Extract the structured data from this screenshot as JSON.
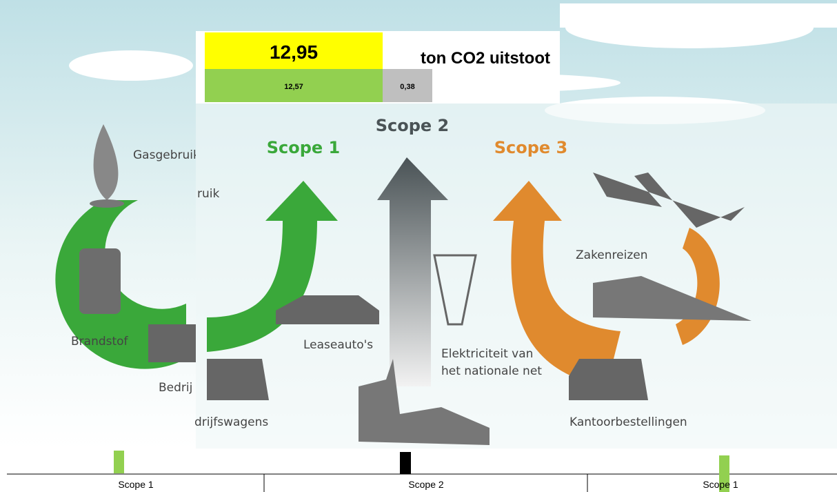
{
  "table": {
    "total": "12,95",
    "unit": "ton CO2 uitstoot",
    "parts": [
      "12,57",
      "0,38"
    ]
  },
  "back_layer": {
    "labels": [
      "Gasgebruik",
      "Brandstof",
      "Bedrij"
    ]
  },
  "front_layer": {
    "scopes": [
      "Scope 1",
      "Scope 2",
      "Scope 3"
    ],
    "labels": [
      "ruik",
      "Leaseauto's",
      "drijfswagens",
      "Elektriciteit van",
      "het nationale net",
      "Zakenreizen",
      "Kantoorbestellingen"
    ]
  },
  "axis": {
    "labels": [
      "Scope 1",
      "Scope 2",
      "Scope 1"
    ]
  }
}
